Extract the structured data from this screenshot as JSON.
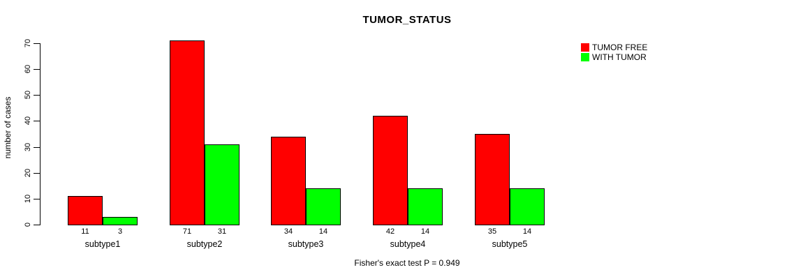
{
  "chart_data": {
    "type": "bar",
    "title": "TUMOR_STATUS",
    "ylabel": "number of cases",
    "xlabel": "",
    "caption": "Fisher's exact test P = 0.949",
    "categories": [
      "subtype1",
      "subtype2",
      "subtype3",
      "subtype4",
      "subtype5"
    ],
    "series": [
      {
        "name": "TUMOR FREE",
        "color": "#FF0000",
        "values": [
          11,
          71,
          34,
          42,
          35
        ]
      },
      {
        "name": "WITH TUMOR",
        "color": "#00FF00",
        "values": [
          3,
          31,
          14,
          14,
          14
        ]
      }
    ],
    "yticks": [
      0,
      10,
      20,
      30,
      40,
      50,
      60,
      70
    ],
    "ylim": [
      0,
      70
    ],
    "grid": false,
    "legend_position": "top-right",
    "bar_border_color": "#000000",
    "axis_color": "#000000",
    "show_value_labels": true
  }
}
